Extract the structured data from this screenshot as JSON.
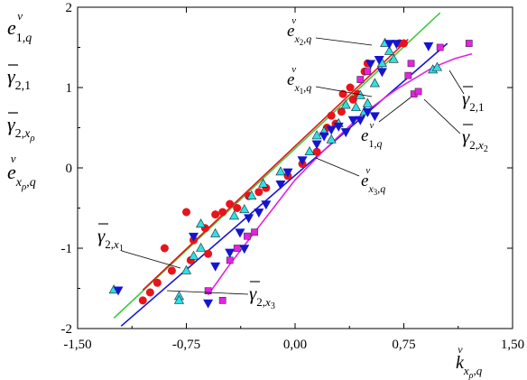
{
  "chart_data": {
    "type": "scatter",
    "title": "",
    "xlabel": "k^v_{xρ,q}",
    "ylabel": "",
    "xlim": [
      -1.5,
      1.5
    ],
    "ylim": [
      -2,
      2
    ],
    "x_ticks": [
      -1.5,
      -0.75,
      0,
      0.75,
      1.5
    ],
    "x_tick_labels": [
      "-1,50",
      "-0,75",
      "0,00",
      "0,75",
      "1,50"
    ],
    "y_ticks": [
      -2,
      -1,
      0,
      1,
      2
    ],
    "y_tick_labels": [
      "-2",
      "-1",
      "0",
      "1",
      "2"
    ],
    "grid": false,
    "legend": "left",
    "legend_entries": [
      "e^v_{1,q}",
      "γ̄_{2,1}",
      "γ̄_{2,xρ}",
      "e^v_{xρ,q}"
    ],
    "series": [
      {
        "name": "e^v_{x1,q}",
        "marker": "circle",
        "color": "#e8141c",
        "points": [
          [
            -1.05,
            -1.65
          ],
          [
            -1.0,
            -1.55
          ],
          [
            -0.95,
            -1.43
          ],
          [
            -0.85,
            -1.28
          ],
          [
            -0.72,
            -1.15
          ],
          [
            -0.7,
            -0.9
          ],
          [
            -0.62,
            -0.75
          ],
          [
            -0.55,
            -0.58
          ],
          [
            -0.5,
            -0.55
          ],
          [
            -0.45,
            -0.45
          ],
          [
            -0.4,
            -0.5
          ],
          [
            -0.32,
            -0.35
          ],
          [
            -0.25,
            -0.3
          ],
          [
            -0.2,
            -0.25
          ],
          [
            -0.05,
            -0.1
          ],
          [
            0.05,
            0.05
          ],
          [
            0.15,
            0.2
          ],
          [
            0.22,
            0.5
          ],
          [
            0.25,
            0.65
          ],
          [
            0.28,
            0.55
          ],
          [
            0.32,
            0.7
          ],
          [
            0.33,
            0.92
          ],
          [
            0.38,
            1.0
          ],
          [
            0.4,
            0.85
          ],
          [
            0.43,
            0.92
          ],
          [
            0.48,
            1.2
          ],
          [
            0.5,
            1.3
          ],
          [
            0.72,
            1.55
          ],
          [
            0.75,
            1.55
          ],
          [
            -0.9,
            -1.0
          ],
          [
            -0.6,
            -1.07
          ],
          [
            -0.75,
            -0.55
          ]
        ]
      },
      {
        "name": "e^v_{x2,q}",
        "marker": "triangle-up",
        "color": "#2ee0e4",
        "points": [
          [
            -1.25,
            -1.52
          ],
          [
            -0.8,
            -1.6
          ],
          [
            -0.75,
            -1.28
          ],
          [
            -0.7,
            -1.1
          ],
          [
            -0.65,
            -1.0
          ],
          [
            -0.55,
            -0.82
          ],
          [
            -0.42,
            -0.6
          ],
          [
            -0.35,
            -0.52
          ],
          [
            -0.3,
            -0.35
          ],
          [
            -0.22,
            -0.2
          ],
          [
            -0.1,
            -0.05
          ],
          [
            0.1,
            0.2
          ],
          [
            0.15,
            0.4
          ],
          [
            0.2,
            0.45
          ],
          [
            0.3,
            0.55
          ],
          [
            0.35,
            0.78
          ],
          [
            0.45,
            0.9
          ],
          [
            0.48,
            0.7
          ],
          [
            0.5,
            0.8
          ],
          [
            0.55,
            1.05
          ],
          [
            0.6,
            1.3
          ],
          [
            0.62,
            1.55
          ],
          [
            0.65,
            1.45
          ],
          [
            0.68,
            1.35
          ],
          [
            0.95,
            1.22
          ],
          [
            0.98,
            1.25
          ],
          [
            -0.8,
            -1.65
          ],
          [
            -0.65,
            -0.7
          ],
          [
            0.25,
            0.35
          ],
          [
            0.42,
            0.75
          ]
        ]
      },
      {
        "name": "e^v_{x3,q}",
        "marker": "triangle-down",
        "color": "#1515d0",
        "points": [
          [
            -1.22,
            -1.52
          ],
          [
            -0.6,
            -1.68
          ],
          [
            -0.55,
            -1.22
          ],
          [
            -0.45,
            -1.05
          ],
          [
            -0.38,
            -0.8
          ],
          [
            -0.32,
            -0.62
          ],
          [
            -0.25,
            -0.55
          ],
          [
            -0.2,
            -0.45
          ],
          [
            -0.1,
            -0.2
          ],
          [
            -0.05,
            -0.05
          ],
          [
            0.05,
            0.1
          ],
          [
            0.15,
            0.3
          ],
          [
            0.2,
            0.4
          ],
          [
            0.25,
            0.48
          ],
          [
            0.3,
            0.52
          ],
          [
            0.4,
            0.6
          ],
          [
            0.45,
            0.6
          ],
          [
            0.5,
            0.7
          ],
          [
            0.52,
            1.3
          ],
          [
            0.58,
            1.35
          ],
          [
            0.65,
            1.55
          ],
          [
            0.7,
            1.55
          ],
          [
            0.92,
            1.52
          ],
          [
            -0.7,
            -0.85
          ],
          [
            -0.35,
            -1.0
          ],
          [
            0.35,
            0.45
          ],
          [
            0.55,
            0.65
          ],
          [
            0.6,
            1.2
          ]
        ]
      },
      {
        "name": "e^v_{1,q}",
        "marker": "square",
        "color": "#e422e4",
        "points": [
          [
            -0.6,
            -1.53
          ],
          [
            -0.5,
            -1.65
          ],
          [
            -0.45,
            -1.15
          ],
          [
            -0.4,
            -1.0
          ],
          [
            -0.33,
            -0.85
          ],
          [
            -0.28,
            -0.8
          ],
          [
            0.45,
            1.1
          ],
          [
            0.5,
            1.2
          ],
          [
            0.78,
            1.15
          ],
          [
            0.8,
            1.3
          ],
          [
            0.82,
            0.92
          ],
          [
            0.85,
            0.95
          ],
          [
            1.0,
            1.5
          ],
          [
            1.2,
            1.55
          ]
        ]
      }
    ],
    "fit_lines": [
      {
        "name": "e^v_{x2,q}",
        "color": "#3ecb3e",
        "x": [
          -1.25,
          1.0
        ],
        "y": [
          -1.87,
          1.93
        ]
      },
      {
        "name": "e^v_{x3,q}",
        "color": "#1515d0",
        "x": [
          -1.2,
          1.05
        ],
        "y": [
          -1.97,
          1.55
        ]
      },
      {
        "name": "e^v_{x1,q}",
        "color": "#e8141c",
        "x": [
          -1.05,
          0.78
        ],
        "y": [
          -1.52,
          1.6
        ]
      },
      {
        "name": "γ̄_{2,1}",
        "color": "#e422e4",
        "x": [
          -0.6,
          -0.45,
          -0.3,
          -0.15,
          0,
          0.2,
          0.45,
          0.7,
          0.95,
          1.1,
          1.22
        ],
        "y": [
          -1.58,
          -1.2,
          -0.85,
          -0.5,
          -0.15,
          0.22,
          0.65,
          0.98,
          1.25,
          1.36,
          1.42
        ]
      }
    ],
    "annotations": [
      "e^v_{x2,q}",
      "e^v_{x1,q}",
      "e^v_{1,q}",
      "e^v_{x3,q}",
      "γ̄_{2,1}",
      "γ̄_{2,x2}",
      "γ̄_{2,x1}",
      "γ̄_{2,x3}"
    ]
  }
}
